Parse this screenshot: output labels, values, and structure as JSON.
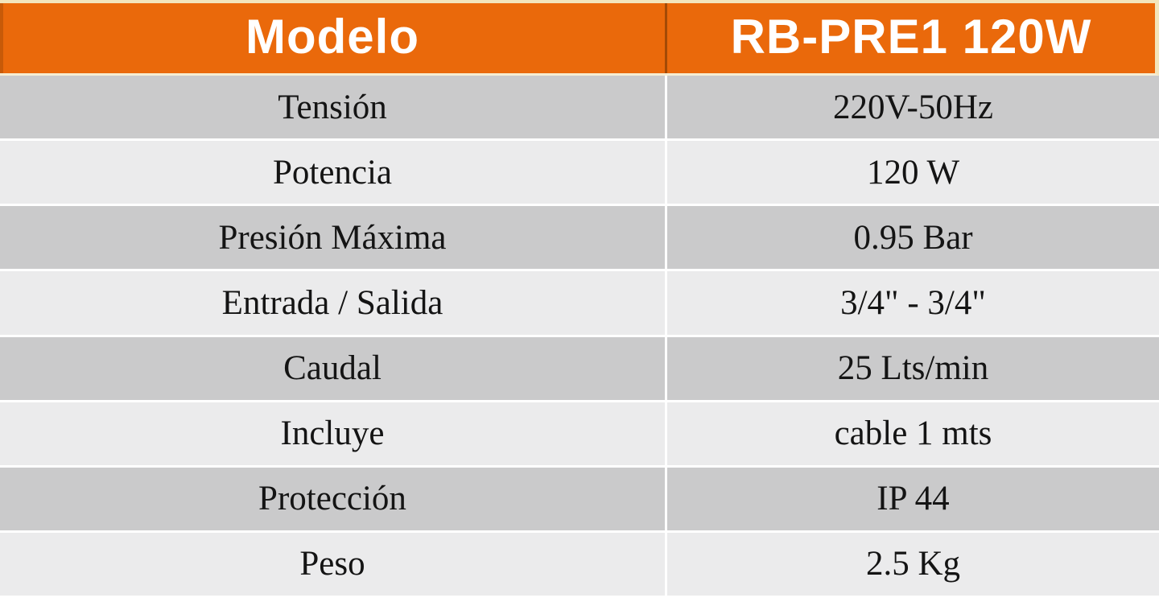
{
  "table": {
    "header": {
      "label_column_title": "Modelo",
      "value_column_title": "RB-PRE1 120W"
    },
    "rows": [
      {
        "label": "Tensión",
        "value": "220V-50Hz"
      },
      {
        "label": "Potencia",
        "value": "120 W"
      },
      {
        "label": "Presión Máxima",
        "value": "0.95 Bar"
      },
      {
        "label": "Entrada / Salida",
        "value": "3/4\" - 3/4\""
      },
      {
        "label": "Caudal",
        "value": "25 Lts/min"
      },
      {
        "label": "Incluye",
        "value": "cable 1 mts"
      },
      {
        "label": "Protección",
        "value": "IP 44"
      },
      {
        "label": "Peso",
        "value": "2.5 Kg"
      }
    ],
    "colors": {
      "header_background": "#EA690B",
      "header_text": "#FFFFFF",
      "header_border_cream": "#F3E5BC",
      "header_divider_dark_orange": "#A34A06",
      "row_gray": "#CACACB",
      "row_light": "#EBEBEC",
      "row_separator_white": "#FFFFFF",
      "body_text": "#141414"
    }
  }
}
